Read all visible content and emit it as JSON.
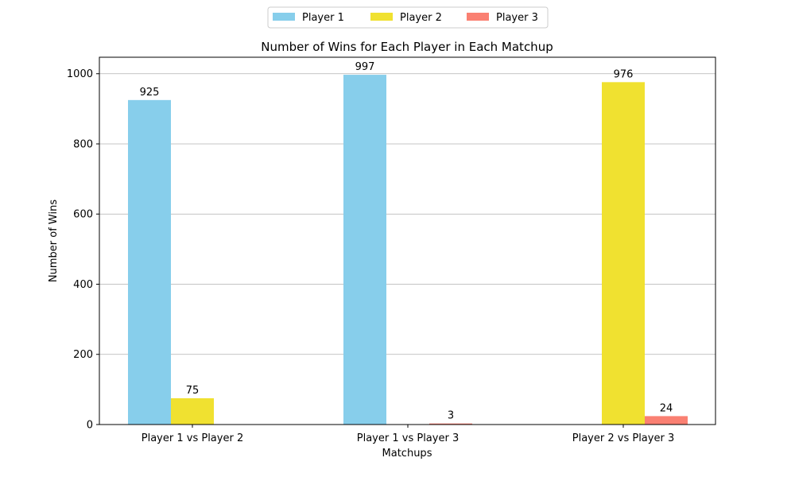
{
  "chart_data": {
    "type": "bar",
    "title": "Number of Wins for Each Player in Each Matchup",
    "xlabel": "Matchups",
    "ylabel": "Number of Wins",
    "categories": [
      "Player 1 vs Player 2",
      "Player 1 vs Player 3",
      "Player 2 vs Player 3"
    ],
    "series": [
      {
        "name": "Player 1",
        "color": "#87ceeb",
        "values": [
          925,
          997,
          0
        ]
      },
      {
        "name": "Player 2",
        "color": "#f0e130",
        "values": [
          75,
          0,
          976
        ]
      },
      {
        "name": "Player 3",
        "color": "#fa8072",
        "values": [
          0,
          3,
          24
        ]
      }
    ],
    "data_labels": [
      {
        "category": 0,
        "series": 0,
        "text": "925"
      },
      {
        "category": 0,
        "series": 1,
        "text": "75"
      },
      {
        "category": 1,
        "series": 0,
        "text": "997"
      },
      {
        "category": 1,
        "series": 2,
        "text": "3"
      },
      {
        "category": 2,
        "series": 1,
        "text": "976"
      },
      {
        "category": 2,
        "series": 2,
        "text": "24"
      }
    ],
    "yticks": [
      0,
      200,
      400,
      600,
      800,
      1000
    ],
    "ylim": [
      0,
      1047
    ],
    "grid": "y",
    "legend_position": "top-center"
  }
}
